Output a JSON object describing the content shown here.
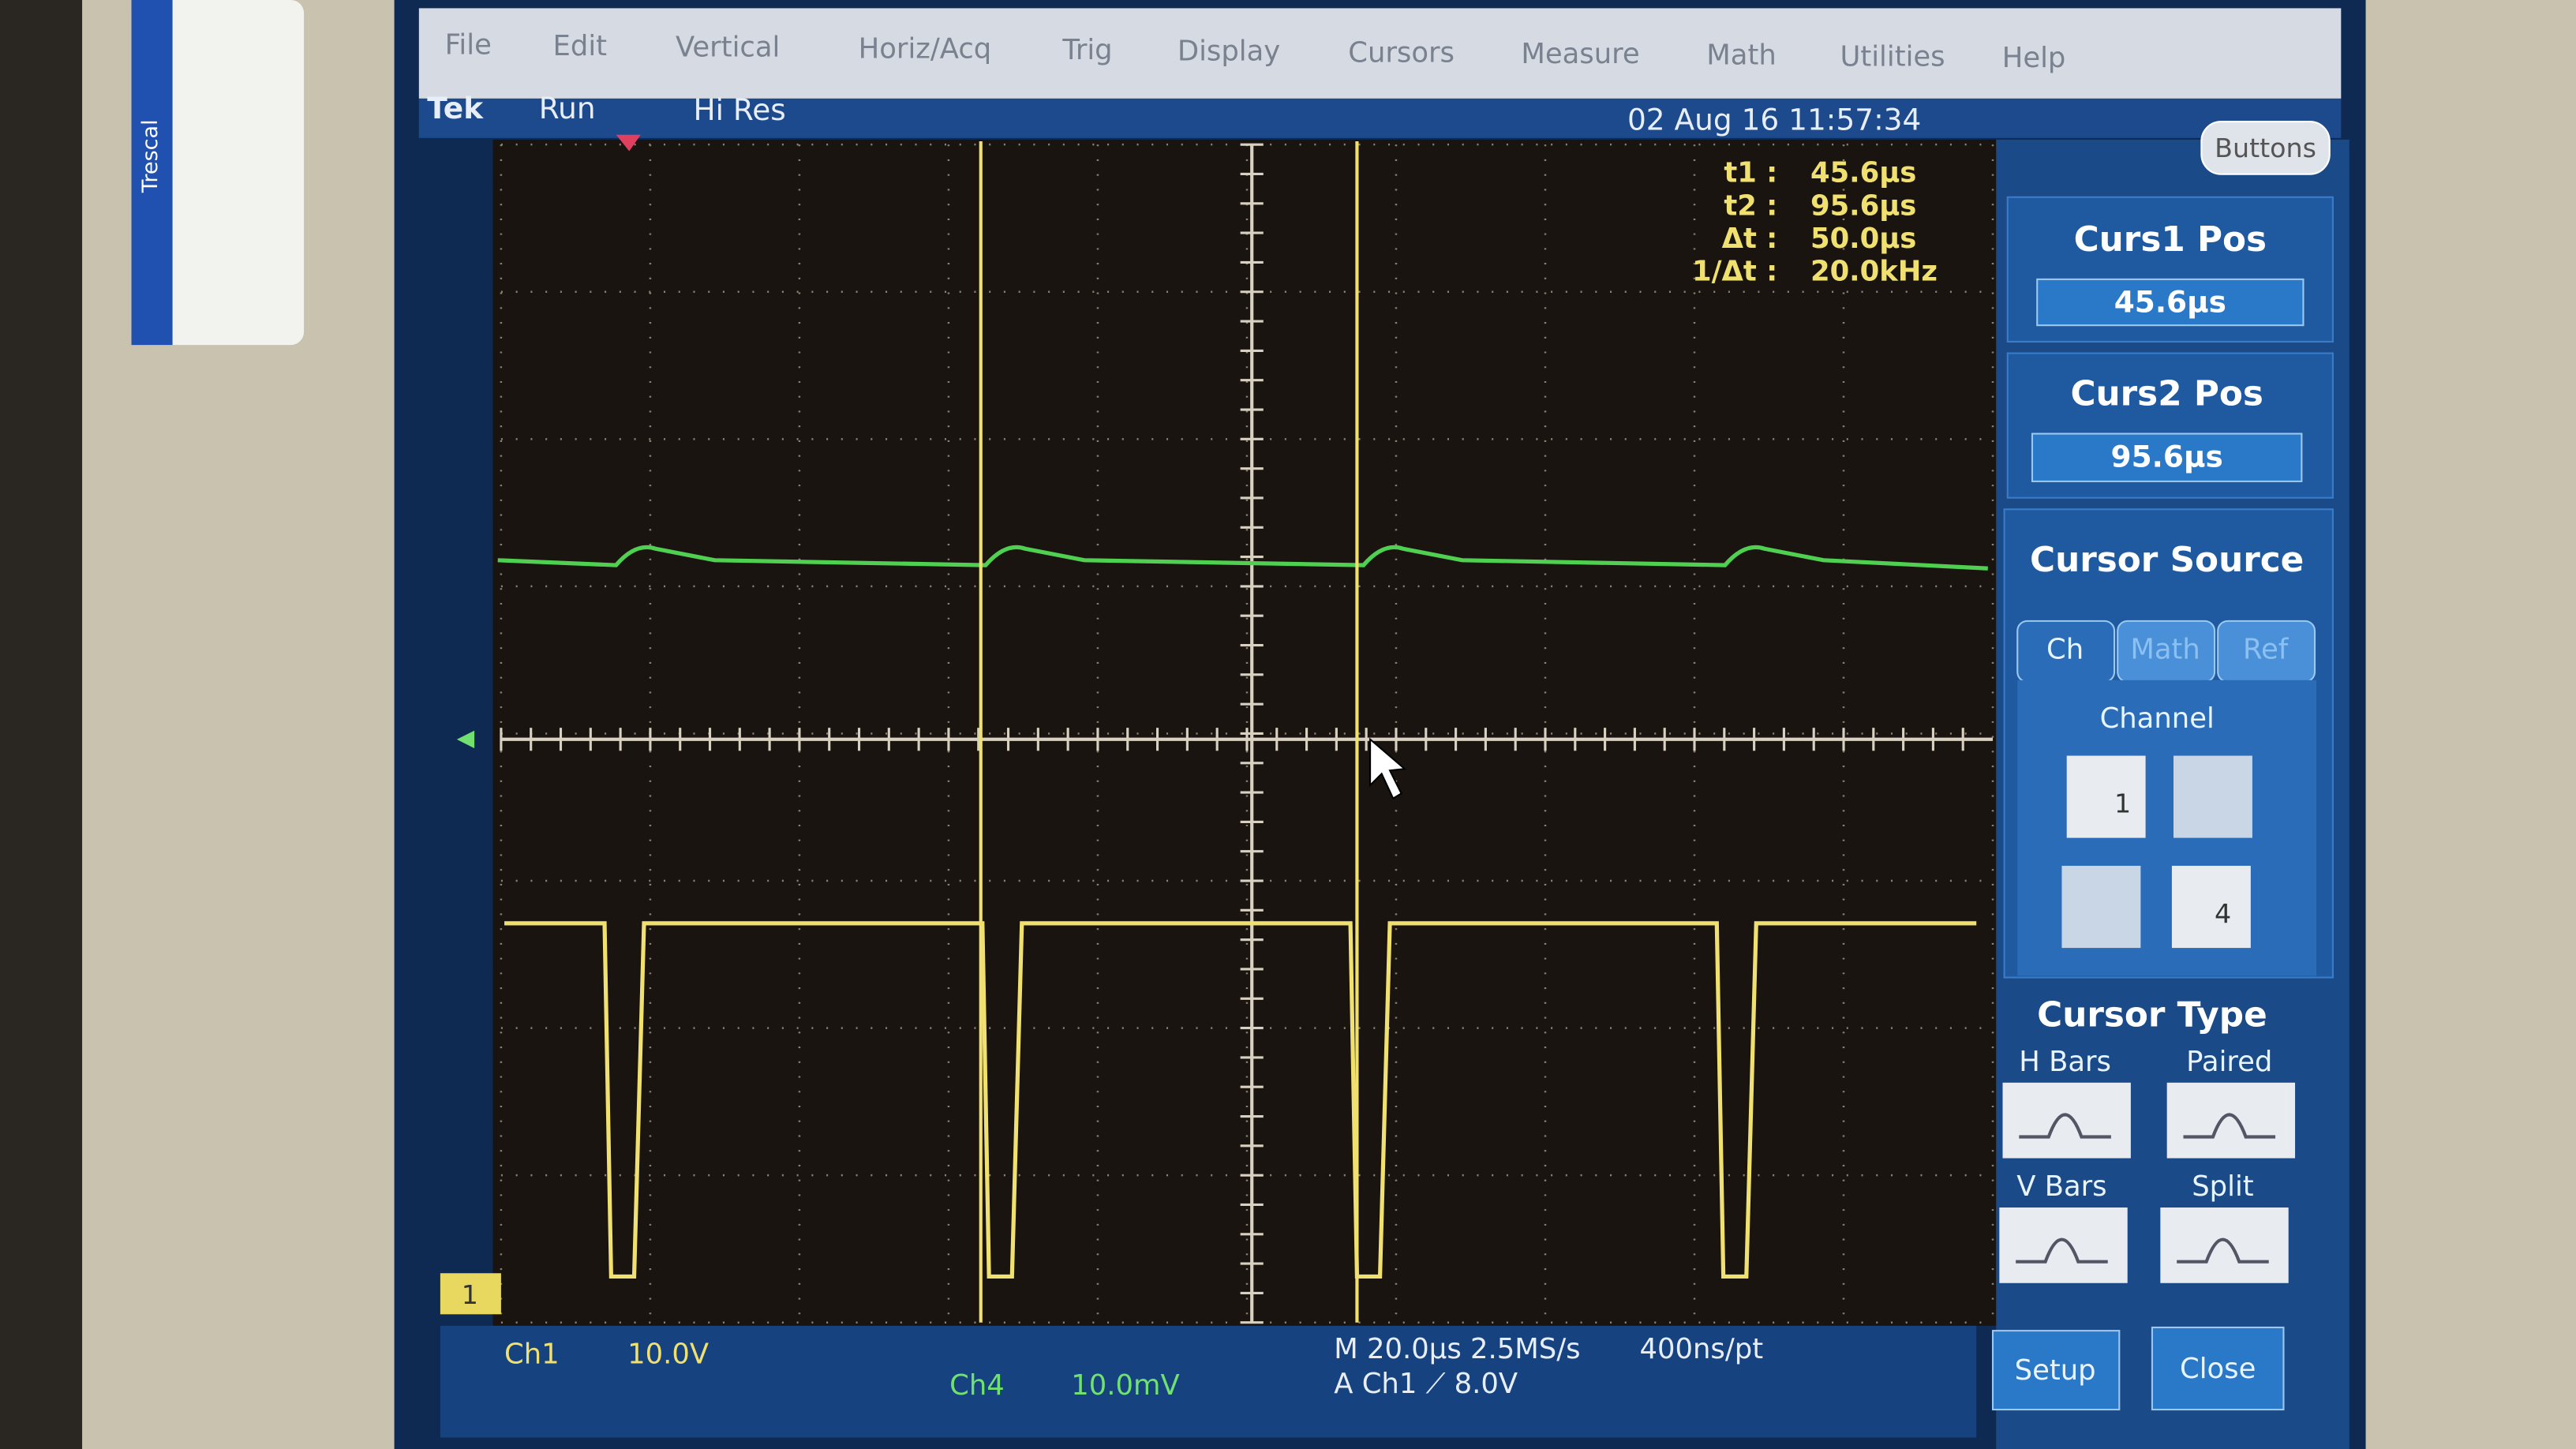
{
  "sticker": "Trescal",
  "menu": [
    "File",
    "Edit",
    "Vertical",
    "Horiz/Acq",
    "Trig",
    "Display",
    "Cursors",
    "Measure",
    "Math",
    "Utilities",
    "Help"
  ],
  "status": {
    "brand": "Tek",
    "mode": "Run",
    "acq": "Hi Res",
    "datetime": "02 Aug 16 11:57:34"
  },
  "readout": [
    [
      "t1 :",
      "45.6µs"
    ],
    [
      "t2 :",
      "95.6µs"
    ],
    [
      "Δt :",
      "50.0µs"
    ],
    [
      "1/Δt :",
      "20.0kHz"
    ]
  ],
  "side": {
    "buttons": "Buttons",
    "curs1_label": "Curs1 Pos",
    "curs1_value": "45.6µs",
    "curs2_label": "Curs2 Pos",
    "curs2_value": "95.6µs",
    "source_title": "Cursor Source",
    "tabs": [
      "Ch",
      "Math",
      "Ref"
    ],
    "channel_label": "Channel",
    "channels": [
      "1",
      "4"
    ],
    "type_title": "Cursor Type",
    "types": [
      "H Bars",
      "Paired",
      "V Bars",
      "Split"
    ],
    "setup": "Setup",
    "close": "Close"
  },
  "bottom": {
    "ch1": "Ch1",
    "ch1_scale": "10.0V",
    "ch4": "Ch4",
    "ch4_scale": "10.0mV",
    "horiz": "M 20.0µs 2.5MS/s",
    "record": "400ns/pt",
    "trig": "A Ch1 ⟋ 8.0V"
  },
  "markers": {
    "ch1": "1"
  }
}
